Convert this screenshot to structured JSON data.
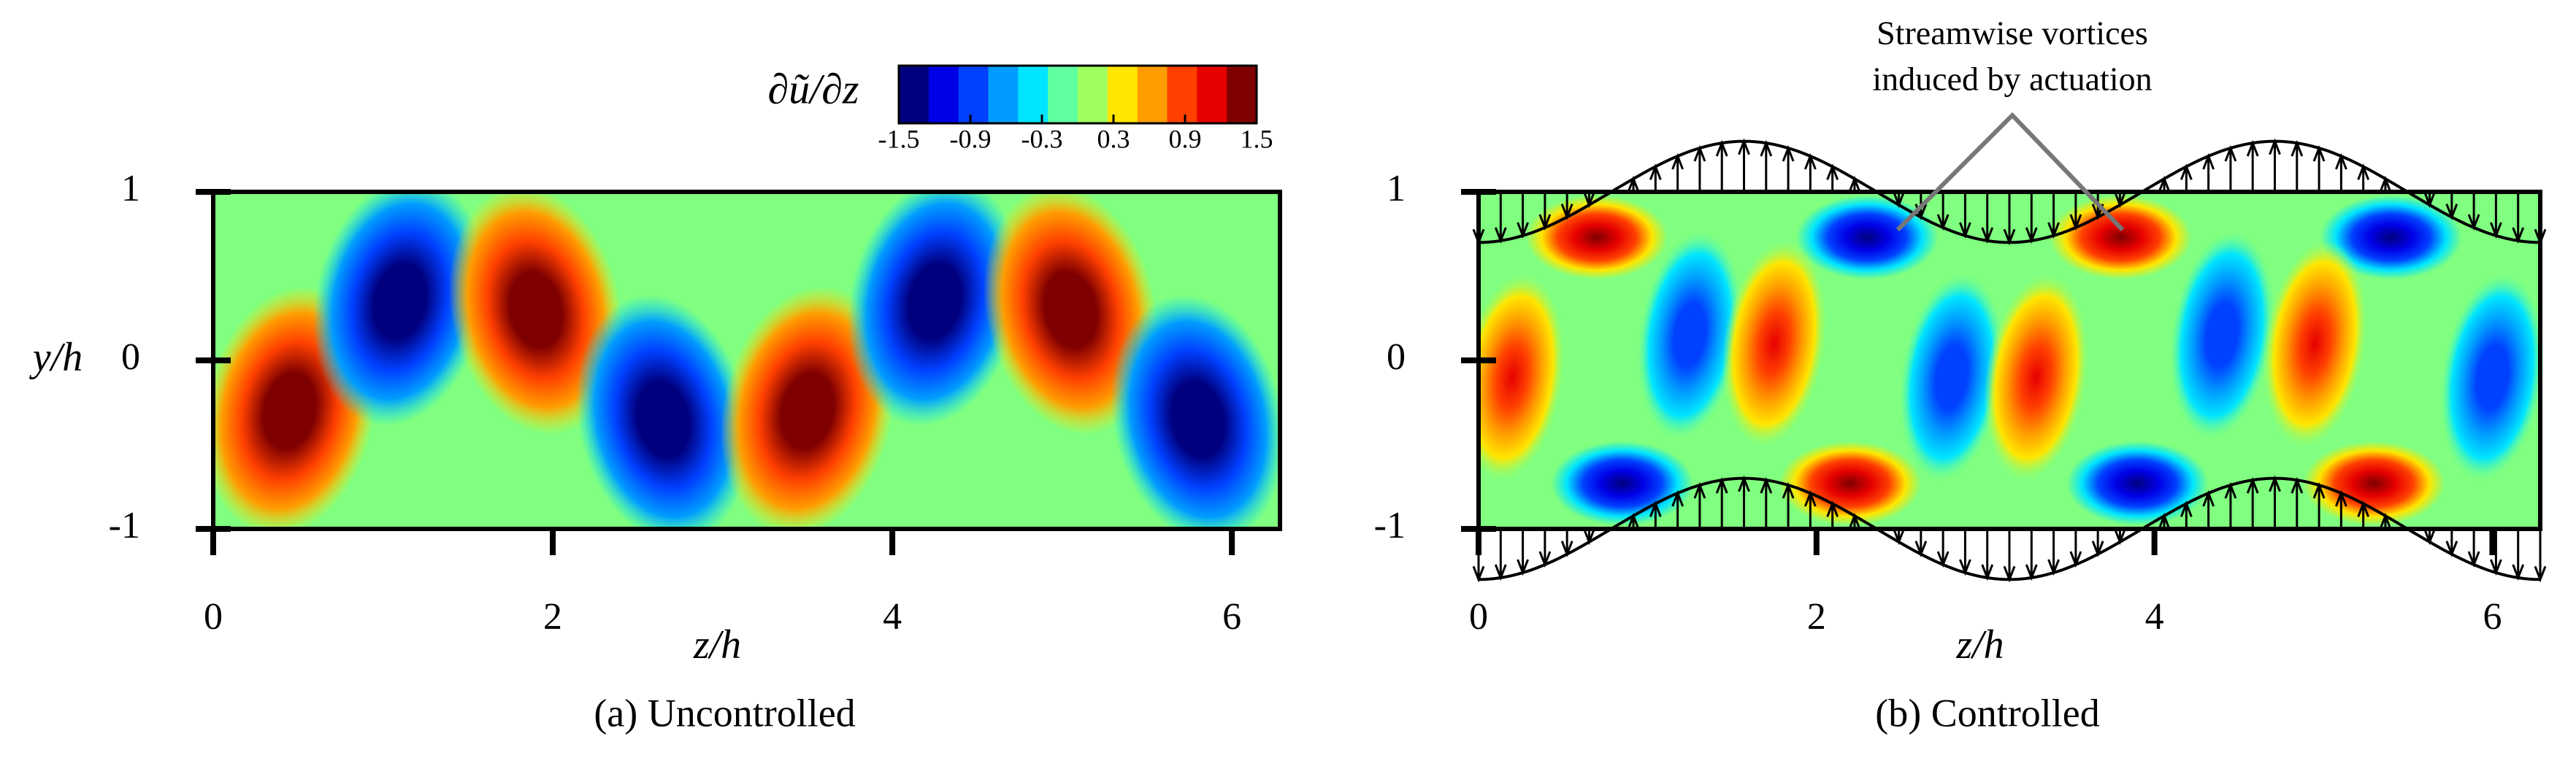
{
  "chart_data": [
    {
      "type": "contour",
      "xlabel": "z/h",
      "ylabel": "y/h",
      "caption": "(a) Uncontrolled",
      "xlim": [
        0,
        6.2832
      ],
      "xticks": [
        0,
        2,
        4,
        6
      ],
      "ylim": [
        -1,
        1
      ],
      "yticks": [
        -1,
        0,
        1
      ],
      "colorbar": {
        "label": "∂ũ/∂z",
        "lim": [
          -1.5,
          1.5
        ],
        "ticks": [
          -1.5,
          -0.9,
          -0.3,
          0.3,
          0.9,
          1.5
        ],
        "colors": [
          "#00007f",
          "#0000e6",
          "#0040ff",
          "#009cff",
          "#00e5ff",
          "#60ffa0",
          "#a0ff60",
          "#ffe600",
          "#ff9c00",
          "#ff4000",
          "#e60000",
          "#7f0000"
        ]
      },
      "vortices": {
        "z": [
          0.45,
          1.1,
          1.9,
          2.65,
          3.5,
          4.25,
          5.05,
          5.8
        ],
        "y": [
          -0.3,
          0.35,
          0.3,
          -0.35,
          -0.3,
          0.35,
          0.3,
          -0.35
        ],
        "values": [
          1.5,
          -1.5,
          1.5,
          -1.5,
          1.5,
          -1.5,
          1.5,
          -1.5
        ]
      }
    },
    {
      "type": "contour",
      "xlabel": "z/h",
      "caption": "(b) Controlled",
      "xlim": [
        0,
        6.2832
      ],
      "xticks": [
        0,
        2,
        4,
        6
      ],
      "ylim": [
        -1,
        1
      ],
      "yticks": [
        -1,
        0,
        1
      ],
      "annotation": [
        "Streamwise vortices",
        "induced by actuation"
      ],
      "actuation": {
        "amplitude": 0.3,
        "wavenumber": 2
      },
      "vortices": {
        "z": [
          0.7,
          2.3,
          3.8,
          5.4,
          0.85,
          2.2,
          3.9,
          5.3,
          0.2,
          1.25,
          1.75,
          2.8,
          3.3,
          4.4,
          4.95,
          6.0
        ],
        "y": [
          0.73,
          0.73,
          0.73,
          0.73,
          -0.73,
          -0.73,
          -0.73,
          -0.73,
          -0.1,
          0.15,
          0.1,
          -0.1,
          -0.1,
          0.15,
          0.1,
          -0.1
        ],
        "values": [
          1.3,
          -1.3,
          1.3,
          -1.3,
          -1.3,
          1.3,
          -1.3,
          1.3,
          1.1,
          -1.0,
          1.1,
          -1.0,
          1.1,
          -1.0,
          1.1,
          -1.0
        ]
      }
    }
  ]
}
